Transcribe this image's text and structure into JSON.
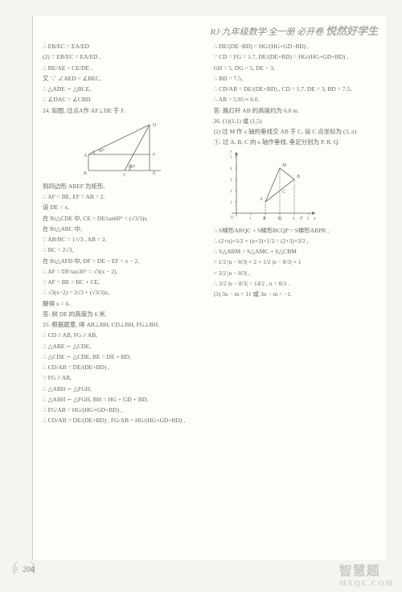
{
  "header": {
    "series": "RJ·九年级数学·全一册",
    "book": "必开卷",
    "brand": "悦然好学生"
  },
  "left_lines_a": [
    "∴ EB/EC = EA/ED",
    "(2) ∵ EB/EC = EA/ED ,",
    "∴ BE/AE = CE/DE ,",
    "又 ∵ ∠AED = ∠BEC,",
    "∴ △ADE ∽ △BCE,",
    "∴ ∠DAC = ∠CBD.",
    "24. 如图, 过点A作 AF⊥DE 于 F."
  ],
  "geom_fig": {
    "labels": {
      "A": "A",
      "B": "B",
      "C": "C",
      "D": "D",
      "E": "E",
      "F": "F"
    },
    "angle1": "30°",
    "angle2": "60°",
    "stroke": "#666666",
    "fill": "none"
  },
  "left_lines_b": [
    "则四边形 ABEF 为矩形,",
    "∴ AF = BE, EF = AB = 2.",
    "设 DE = x,",
    "在 Rt△CDE 中, CE = DE/tan60° = (√3/3)x",
    "在 Rt△ABC 中,",
    "∵ AB/BC = 1/√3 , AB = 2,",
    "∴ BC = 2√3,",
    "在 Rt△AFD 中, DF = DE − EF = x − 2,",
    "∴ AF = DF/tan30° = √3(x − 2),",
    "∵ AF = BE = BC + CE,",
    "∴ √3(x−2) = 2√3 + (√3/3)x,",
    "解得 x = 6.",
    "答: 树 DE 的高度为 6 米.",
    "25. 根据题意, 得 AB⊥BH, CD⊥BH, FG⊥BH,",
    "∴ CD // AB, FG // AB,",
    "∴ △ABE ∽ △CDE,",
    "∴ △CDE ∽ △CDE, BE = DE + BD,",
    "∴ CD/AB = DE/(DE+BD) ,",
    "∵ FG // AB,",
    "∴ △ABH ∽ △FGH,",
    "∴ △ABH ∽ △FGH, BH = HG + GD + BD,",
    "∴ FG/AB = HG/(HG+GD+BD) ,",
    "∴ CD/AB = DE/(DE+BD) , FG/AB = HG/(HG+GD+BD) ,"
  ],
  "right_lines_a": [
    "∴ DE/(DE−BD) = HG/(HG+GD−BD) ,",
    "∵ CD = FG = 1.7, DE/(DE+BD) = HG/(HG+GD+BD) ,",
    "GH = 5, DG = 5, DE = 3,",
    "∴ BD = 7.5,",
    "∴ CD/AB = DE/(DE+BD) , CD = 1.7, DE = 3, BD = 7.5,",
    "∴ AB = 5.95 ≈ 6.0.",
    "答: 路灯杆 AB 的高度约为 6.0 m.",
    "26. (1)(1,1) 或 (1,5)",
    "(2) 过 M 作 x 轴的垂线交 AB 于 C, 设 C 点坐标为 (3, n)",
    "①. 过 A, B, C 向 x 轴作垂线, 垂足分别为 P, R, Q."
  ],
  "chart": {
    "xmax": 5,
    "ymax": 5,
    "xticks": [
      1,
      2,
      3,
      4,
      5
    ],
    "yticks": [
      1,
      2,
      3,
      4,
      5
    ],
    "points": {
      "A": [
        2,
        1
      ],
      "B": [
        4,
        3
      ],
      "M": [
        3,
        4
      ],
      "C": [
        3,
        2
      ],
      "R": [
        2,
        0
      ],
      "Q": [
        3,
        0
      ],
      "P": [
        4.5,
        0
      ]
    },
    "axis_color": "#666666",
    "line_color": "#666666",
    "xlabel": "x",
    "ylabel": "y",
    "origin": "O"
  },
  "right_lines_b": [
    "∴ S梯形ARQC + S梯形BCQP = S梯形ABPR ,",
    "∴ (2+n)×1/2 + (n+3)×1/2 = (2+3)×3/2 ,",
    "∴ S△ABM = S△AMC + S△CBM",
    "= 1/2 |n − 8/3| × 2 + 1/2 |n − 8/3| × 1",
    "= 3/2 |n − 8/3| ,",
    "∴ 3/2 |n − 8/3| = 14/2 , n = 8/3 .",
    "(3) 3n − m = 11 或 3n − m = −1."
  ],
  "page_number": "204",
  "watermark": {
    "main": "智慧题",
    "sub": "MXQE.COM"
  }
}
